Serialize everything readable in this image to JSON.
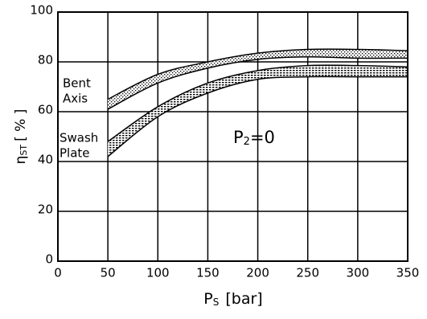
{
  "chart_data": {
    "type": "band",
    "x": [
      50,
      100,
      150,
      200,
      250,
      300,
      350
    ],
    "series": [
      {
        "label": [
          "Bent",
          "Axis"
        ],
        "upper": [
          65,
          75,
          80,
          83.5,
          85,
          85,
          84.5
        ],
        "lower": [
          61,
          71.5,
          77.5,
          81,
          82,
          81.5,
          81.5
        ]
      },
      {
        "label": [
          "Swash",
          "Plate"
        ],
        "upper": [
          48,
          62,
          71.5,
          76.5,
          78.5,
          78.5,
          78
        ],
        "lower": [
          42,
          58,
          67.5,
          73,
          74,
          74,
          74
        ]
      }
    ],
    "xlim": [
      0,
      350
    ],
    "xticks": [
      0,
      50,
      100,
      150,
      200,
      250,
      300,
      350
    ],
    "ylim": [
      0,
      100
    ],
    "yticks": [
      0,
      20,
      40,
      60,
      80,
      100
    ],
    "grid": true,
    "xlabel": {
      "main": "P",
      "sub": "S",
      "unit": "[bar]"
    },
    "ylabel": {
      "main": "η",
      "sub": "ST",
      "unit": "[ % ]"
    },
    "annotation": {
      "main": "P",
      "sub": "2",
      "rest": "=0"
    }
  }
}
